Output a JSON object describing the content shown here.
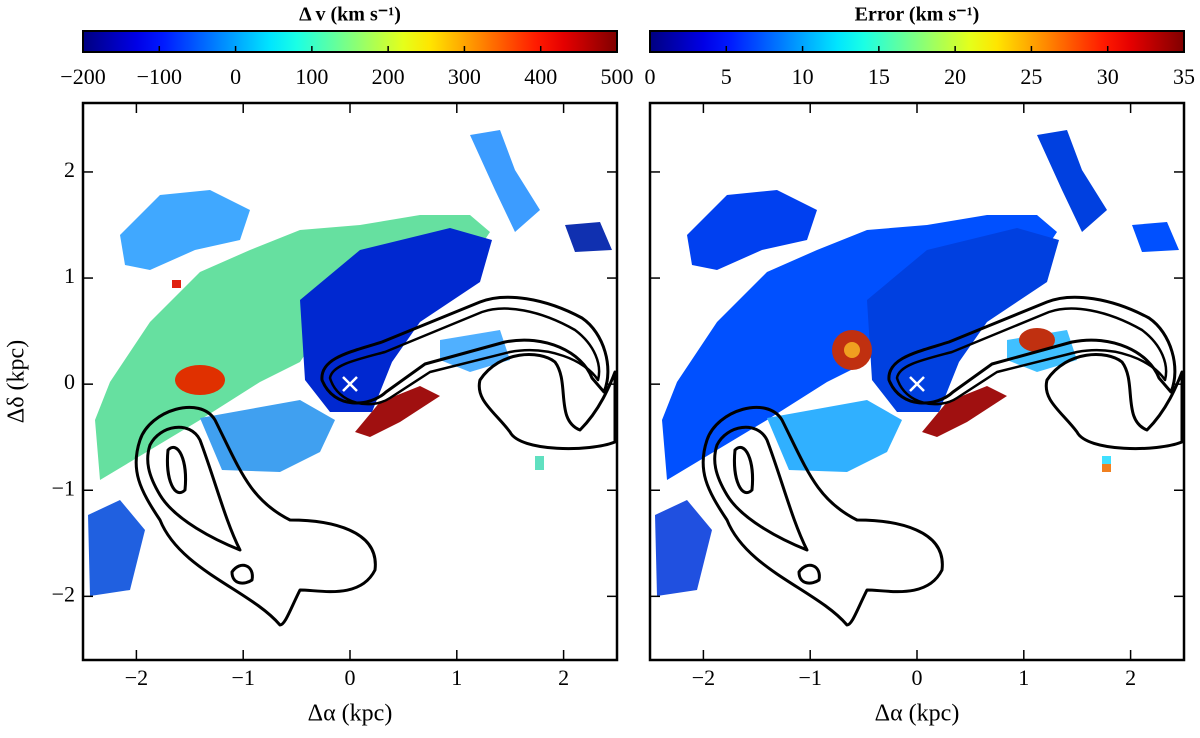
{
  "chart_data": [
    {
      "type": "image",
      "colormap": "jet",
      "colorbar_label": "Δ v (km s⁻¹)",
      "clim": [
        -200,
        500
      ],
      "cticks": [
        {
          "value": -200,
          "label": "−200"
        },
        {
          "value": -100,
          "label": "−100"
        },
        0,
        100,
        200,
        300,
        400,
        500
      ],
      "xlabel": "Δα (kpc)",
      "ylabel": "Δδ (kpc)",
      "xlim": [
        -2.5,
        2.5
      ],
      "ylim": [
        -2.6,
        2.65
      ],
      "xticks": [
        {
          "value": -2,
          "label": "−2"
        },
        {
          "value": -1,
          "label": "−1"
        },
        0,
        1,
        2
      ],
      "yticks": [
        {
          "value": -2,
          "label": "−2"
        },
        {
          "value": -1,
          "label": "−1"
        },
        0,
        1,
        2
      ],
      "ytick_labels": true
    },
    {
      "type": "image",
      "colormap": "jet",
      "colorbar_label": "Error (km s⁻¹)",
      "clim": [
        0,
        35
      ],
      "cticks": [
        0,
        5,
        10,
        15,
        20,
        25,
        30,
        35
      ],
      "xlabel": "Δα (kpc)",
      "xlim": [
        -2.5,
        2.5
      ],
      "ylim": [
        -2.6,
        2.65
      ],
      "xticks": [
        {
          "value": -2,
          "label": "−2"
        },
        {
          "value": -1,
          "label": "−1"
        },
        0,
        1,
        2
      ],
      "yticks": [
        -2,
        -1,
        0,
        1,
        2
      ],
      "ytick_labels": false
    }
  ]
}
